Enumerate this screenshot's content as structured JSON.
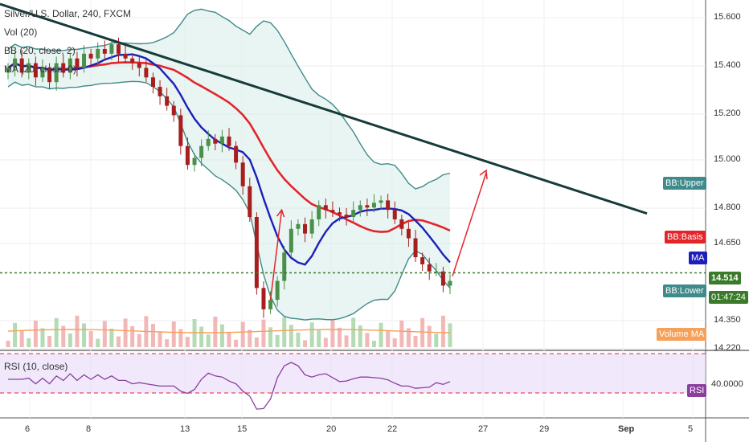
{
  "chart_data": {
    "type": "candlestick",
    "title": "Silver/U.S. Dollar, 240, FXCM",
    "legend": {
      "vol": "Vol (20)",
      "bb": "BB (20, close, 2)",
      "ma": "MA (20, close, 0)",
      "rsi": "RSI (10, close)"
    },
    "price_axis": {
      "ticks": [
        "15.600",
        "15.400",
        "15.200",
        "15.000",
        "14.800",
        "14.650",
        "14.350",
        "14.220"
      ],
      "range": [
        14.2,
        15.65
      ]
    },
    "rsi_axis": {
      "ticks": [
        "40.0000"
      ]
    },
    "x_axis": {
      "ticks": [
        "6",
        "8",
        "13",
        "15",
        "20",
        "22",
        "27",
        "29",
        "Sep",
        "5"
      ]
    },
    "tags": {
      "bb_upper": "BB:Upper",
      "bb_basis": "BB:Basis",
      "ma": "MA",
      "price": "14.514",
      "bb_lower": "BB:Lower",
      "countdown": "01:47:24",
      "volume_ma": "Volume MA",
      "rsi": "RSI"
    },
    "last_price": 14.514,
    "candles_close": [
      15.38,
      15.42,
      15.36,
      15.4,
      15.34,
      15.38,
      15.32,
      15.4,
      15.36,
      15.42,
      15.38,
      15.44,
      15.42,
      15.46,
      15.44,
      15.48,
      15.44,
      15.42,
      15.4,
      15.38,
      15.34,
      15.3,
      15.26,
      15.22,
      15.18,
      15.05,
      14.97,
      15.0,
      15.05,
      15.08,
      15.06,
      15.09,
      15.05,
      14.98,
      14.88,
      14.75,
      14.45,
      14.36,
      14.4,
      14.48,
      14.6,
      14.7,
      14.72,
      14.68,
      14.74,
      14.8,
      14.78,
      14.77,
      14.76,
      14.75,
      14.78,
      14.8,
      14.79,
      14.81,
      14.82,
      14.78,
      14.74,
      14.7,
      14.66,
      14.58,
      14.55,
      14.52,
      14.52,
      14.46,
      14.48
    ],
    "colors": {
      "up": "#4a8f4a",
      "down": "#a81e1e",
      "bb_band": "#3f8a8a",
      "bb_basis": "#e3252a",
      "ma": "#1c1fb8",
      "trendline": "#173a3a",
      "arrow": "#e3252a",
      "price_line": "#3a7a2a",
      "rsi_line": "#8a3f9e",
      "rsi_band": "#e8d8f8"
    }
  }
}
